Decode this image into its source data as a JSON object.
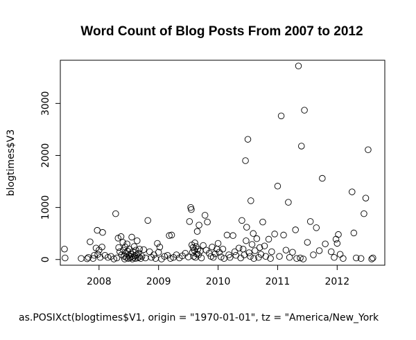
{
  "chart_data": {
    "type": "scatter",
    "title": "Word Count of Blog Posts From 2007 to 2012",
    "xlabel": "as.POSIXct(blogtimes$V1, origin = \"1970-01-01\", tz = \"America/New_York",
    "ylabel": "blogtimes$V3",
    "xlim": [
      2007.35,
      2012.8
    ],
    "ylim": [
      -110,
      3830
    ],
    "x_ticks": [
      2008,
      2009,
      2010,
      2011,
      2012
    ],
    "x_tick_labels": [
      "2008",
      "2009",
      "2010",
      "2011",
      "2012"
    ],
    "y_ticks": [
      0,
      1000,
      2000,
      3000
    ],
    "y_tick_labels": [
      "0",
      "1000",
      "2000",
      "3000"
    ],
    "marker": "open-circle",
    "points": [
      [
        2007.42,
        200
      ],
      [
        2007.43,
        30
      ],
      [
        2007.7,
        20
      ],
      [
        2007.8,
        15
      ],
      [
        2007.82,
        40
      ],
      [
        2007.85,
        340
      ],
      [
        2007.9,
        20
      ],
      [
        2007.92,
        80
      ],
      [
        2007.95,
        220
      ],
      [
        2007.97,
        560
      ],
      [
        2007.98,
        100
      ],
      [
        2008.0,
        180
      ],
      [
        2008.02,
        40
      ],
      [
        2008.05,
        240
      ],
      [
        2008.06,
        520
      ],
      [
        2008.1,
        80
      ],
      [
        2008.15,
        40
      ],
      [
        2008.2,
        60
      ],
      [
        2008.25,
        10
      ],
      [
        2008.28,
        880
      ],
      [
        2008.3,
        30
      ],
      [
        2008.32,
        410
      ],
      [
        2008.33,
        230
      ],
      [
        2008.35,
        150
      ],
      [
        2008.37,
        440
      ],
      [
        2008.38,
        90
      ],
      [
        2008.4,
        330
      ],
      [
        2008.41,
        180
      ],
      [
        2008.42,
        60
      ],
      [
        2008.43,
        10
      ],
      [
        2008.44,
        240
      ],
      [
        2008.45,
        120
      ],
      [
        2008.46,
        40
      ],
      [
        2008.47,
        300
      ],
      [
        2008.48,
        160
      ],
      [
        2008.49,
        20
      ],
      [
        2008.5,
        80
      ],
      [
        2008.51,
        200
      ],
      [
        2008.52,
        30
      ],
      [
        2008.53,
        110
      ],
      [
        2008.54,
        60
      ],
      [
        2008.55,
        430
      ],
      [
        2008.56,
        10
      ],
      [
        2008.57,
        150
      ],
      [
        2008.58,
        40
      ],
      [
        2008.59,
        250
      ],
      [
        2008.6,
        70
      ],
      [
        2008.61,
        20
      ],
      [
        2008.62,
        180
      ],
      [
        2008.63,
        90
      ],
      [
        2008.64,
        360
      ],
      [
        2008.65,
        30
      ],
      [
        2008.66,
        120
      ],
      [
        2008.67,
        50
      ],
      [
        2008.68,
        200
      ],
      [
        2008.7,
        20
      ],
      [
        2008.72,
        60
      ],
      [
        2008.75,
        190
      ],
      [
        2008.78,
        30
      ],
      [
        2008.82,
        750
      ],
      [
        2008.85,
        150
      ],
      [
        2008.88,
        40
      ],
      [
        2008.92,
        90
      ],
      [
        2008.95,
        20
      ],
      [
        2008.98,
        310
      ],
      [
        2009.0,
        140
      ],
      [
        2009.02,
        240
      ],
      [
        2009.05,
        10
      ],
      [
        2009.1,
        60
      ],
      [
        2009.15,
        80
      ],
      [
        2009.18,
        460
      ],
      [
        2009.2,
        20
      ],
      [
        2009.22,
        470
      ],
      [
        2009.25,
        40
      ],
      [
        2009.3,
        90
      ],
      [
        2009.35,
        30
      ],
      [
        2009.4,
        70
      ],
      [
        2009.45,
        120
      ],
      [
        2009.5,
        50
      ],
      [
        2009.52,
        730
      ],
      [
        2009.54,
        1000
      ],
      [
        2009.55,
        960
      ],
      [
        2009.56,
        280
      ],
      [
        2009.57,
        140
      ],
      [
        2009.58,
        230
      ],
      [
        2009.59,
        60
      ],
      [
        2009.6,
        180
      ],
      [
        2009.61,
        320
      ],
      [
        2009.62,
        40
      ],
      [
        2009.63,
        250
      ],
      [
        2009.64,
        110
      ],
      [
        2009.65,
        540
      ],
      [
        2009.66,
        200
      ],
      [
        2009.67,
        90
      ],
      [
        2009.68,
        660
      ],
      [
        2009.7,
        160
      ],
      [
        2009.72,
        30
      ],
      [
        2009.75,
        270
      ],
      [
        2009.78,
        850
      ],
      [
        2009.8,
        180
      ],
      [
        2009.82,
        720
      ],
      [
        2009.85,
        120
      ],
      [
        2009.88,
        60
      ],
      [
        2009.9,
        240
      ],
      [
        2009.92,
        40
      ],
      [
        2009.95,
        110
      ],
      [
        2009.98,
        200
      ],
      [
        2010.0,
        310
      ],
      [
        2010.02,
        140
      ],
      [
        2010.05,
        50
      ],
      [
        2010.08,
        200
      ],
      [
        2010.1,
        20
      ],
      [
        2010.15,
        470
      ],
      [
        2010.18,
        90
      ],
      [
        2010.2,
        40
      ],
      [
        2010.25,
        460
      ],
      [
        2010.28,
        150
      ],
      [
        2010.3,
        80
      ],
      [
        2010.35,
        220
      ],
      [
        2010.38,
        30
      ],
      [
        2010.4,
        750
      ],
      [
        2010.42,
        200
      ],
      [
        2010.44,
        90
      ],
      [
        2010.46,
        1900
      ],
      [
        2010.47,
        360
      ],
      [
        2010.48,
        620
      ],
      [
        2010.5,
        2310
      ],
      [
        2010.52,
        130
      ],
      [
        2010.54,
        60
      ],
      [
        2010.55,
        1130
      ],
      [
        2010.57,
        290
      ],
      [
        2010.59,
        500
      ],
      [
        2010.6,
        20
      ],
      [
        2010.62,
        170
      ],
      [
        2010.65,
        400
      ],
      [
        2010.68,
        40
      ],
      [
        2010.7,
        230
      ],
      [
        2010.72,
        100
      ],
      [
        2010.75,
        720
      ],
      [
        2010.78,
        260
      ],
      [
        2010.8,
        60
      ],
      [
        2010.85,
        390
      ],
      [
        2010.88,
        20
      ],
      [
        2010.9,
        150
      ],
      [
        2010.95,
        490
      ],
      [
        2011.0,
        1410
      ],
      [
        2011.03,
        60
      ],
      [
        2011.06,
        2760
      ],
      [
        2011.1,
        470
      ],
      [
        2011.14,
        180
      ],
      [
        2011.18,
        1100
      ],
      [
        2011.2,
        40
      ],
      [
        2011.25,
        140
      ],
      [
        2011.3,
        570
      ],
      [
        2011.32,
        20
      ],
      [
        2011.35,
        3720
      ],
      [
        2011.38,
        30
      ],
      [
        2011.4,
        2180
      ],
      [
        2011.43,
        10
      ],
      [
        2011.45,
        2870
      ],
      [
        2011.5,
        330
      ],
      [
        2011.55,
        730
      ],
      [
        2011.6,
        90
      ],
      [
        2011.65,
        610
      ],
      [
        2011.7,
        170
      ],
      [
        2011.75,
        1560
      ],
      [
        2011.8,
        300
      ],
      [
        2011.9,
        150
      ],
      [
        2011.95,
        40
      ],
      [
        2011.98,
        390
      ],
      [
        2012.0,
        310
      ],
      [
        2012.02,
        480
      ],
      [
        2012.05,
        100
      ],
      [
        2012.1,
        20
      ],
      [
        2012.25,
        1300
      ],
      [
        2012.28,
        510
      ],
      [
        2012.32,
        30
      ],
      [
        2012.4,
        20
      ],
      [
        2012.45,
        880
      ],
      [
        2012.48,
        1180
      ],
      [
        2012.52,
        2110
      ],
      [
        2012.58,
        10
      ],
      [
        2012.6,
        30
      ]
    ]
  }
}
